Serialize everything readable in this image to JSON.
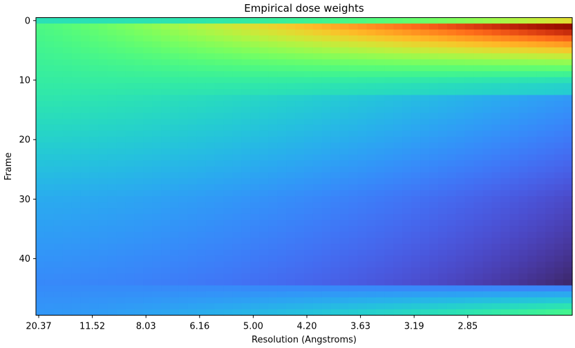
{
  "chart_data": {
    "type": "heatmap",
    "title": "Empirical dose weights",
    "xlabel": "Resolution (Angstroms)",
    "ylabel": "Frame",
    "x_tick_labels": [
      "20.37",
      "11.52",
      "8.03",
      "6.16",
      "5.00",
      "4.20",
      "3.63",
      "3.19",
      "2.85"
    ],
    "y_ticks": [
      0,
      10,
      20,
      30,
      40
    ],
    "ylim": [
      49.5,
      -0.5
    ],
    "frames": 50,
    "resolution_bins": 60,
    "colormap": "turbo",
    "grid": false,
    "colorbar": false
  }
}
